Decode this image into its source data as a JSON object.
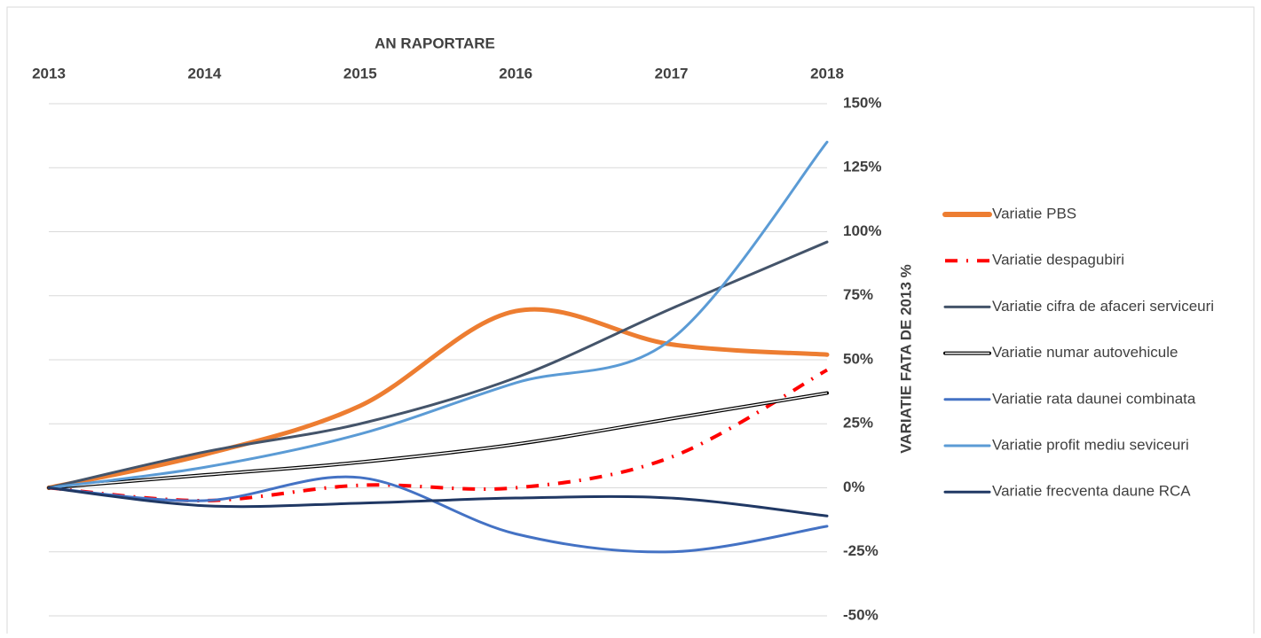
{
  "chart_data": {
    "type": "line",
    "x_axis_label": "AN RAPORTARE",
    "y_axis_label": "VARIATIE FATA DE 2013 %",
    "categories": [
      "2013",
      "2014",
      "2015",
      "2016",
      "2017",
      "2018"
    ],
    "ylim": [
      -50,
      150
    ],
    "yticks": [
      {
        "value": -50,
        "label": "-50%"
      },
      {
        "value": -25,
        "label": "-25%"
      },
      {
        "value": 0,
        "label": "0%"
      },
      {
        "value": 25,
        "label": "25%"
      },
      {
        "value": 50,
        "label": "50%"
      },
      {
        "value": 75,
        "label": "75%"
      },
      {
        "value": 100,
        "label": "100%"
      },
      {
        "value": 125,
        "label": "125%"
      },
      {
        "value": 150,
        "label": "150%"
      }
    ],
    "grid": true,
    "smooth": true,
    "legend": "right",
    "series": [
      {
        "name": "Variatie PBS",
        "color": "#ed7d31",
        "line_style": "thick",
        "values": [
          0,
          13,
          32,
          69,
          56,
          52
        ]
      },
      {
        "name": "Variatie despagubiri",
        "color": "#ff0000",
        "line_style": "dash-dot",
        "values": [
          0,
          -5,
          1,
          0,
          12,
          46
        ]
      },
      {
        "name": "Variatie cifra de afaceri serviceuri",
        "color": "#44546a",
        "line_style": "solid",
        "values": [
          0,
          14,
          25,
          43,
          70,
          96
        ]
      },
      {
        "name": "Variatie numar autovehicule",
        "color": "#000000",
        "line_style": "double",
        "values": [
          0,
          5,
          10,
          17,
          27,
          37
        ]
      },
      {
        "name": "Variatie rata daunei combinata",
        "color": "#4472c4",
        "line_style": "solid",
        "values": [
          0,
          -5,
          4,
          -18,
          -25,
          -15
        ]
      },
      {
        "name": "Variatie profit mediu seviceuri",
        "color": "#5b9bd5",
        "line_style": "solid",
        "values": [
          0,
          8,
          21,
          41,
          58,
          135
        ]
      },
      {
        "name": "Variatie frecventa daune RCA",
        "color": "#203864",
        "line_style": "solid",
        "values": [
          0,
          -7,
          -6,
          -4,
          -4,
          -11
        ]
      }
    ]
  }
}
